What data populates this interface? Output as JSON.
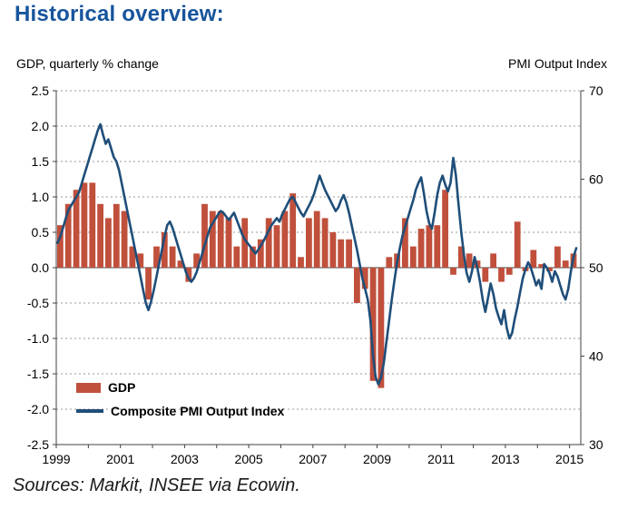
{
  "colors": {
    "title": "#17549c",
    "bar": "#c0503c",
    "line": "#1f4e79",
    "grid": "#9a9a9a",
    "axis": "#404040",
    "text": "#000000"
  },
  "chart_data": {
    "type": "combo_bar_line",
    "title": "Historical overview:",
    "source": "Sources: Markit, INSEE via Ecowin.",
    "grid": "dotted-horizontal",
    "legend_position": "inside-bottom-left",
    "left_axis": {
      "label": "GDP, quarterly % change",
      "min": -2.5,
      "max": 2.5,
      "step": 0.5,
      "ticks": [
        "2.5",
        "2.0",
        "1.5",
        "1.0",
        "0.5",
        "0.0",
        "-0.5",
        "-1.0",
        "-1.5",
        "-2.0",
        "-2.5"
      ]
    },
    "right_axis": {
      "label": "PMI Output Index",
      "min": 30,
      "max": 70,
      "step": 10,
      "ticks": [
        "70",
        "60",
        "50",
        "40",
        "30"
      ]
    },
    "x_axis": {
      "domain": [
        1999,
        2015.35
      ],
      "first_year": 1999,
      "last_year": 2015,
      "labels": [
        "1999",
        "2001",
        "2003",
        "2005",
        "2007",
        "2009",
        "2011",
        "2013",
        "2015"
      ]
    },
    "series": [
      {
        "name": "GDP",
        "type": "bar",
        "axis": "left",
        "color": "#c0503c",
        "start": 1999,
        "interval_years": 0.25,
        "values": [
          0.6,
          0.9,
          1.1,
          1.2,
          1.2,
          0.9,
          0.7,
          0.9,
          0.8,
          0.3,
          0.2,
          -0.45,
          0.3,
          0.5,
          0.3,
          0.1,
          -0.2,
          0.2,
          0.9,
          0.8,
          0.8,
          0.7,
          0.3,
          0.7,
          0.3,
          0.4,
          0.7,
          0.6,
          0.8,
          1.05,
          0.15,
          0.7,
          0.8,
          0.7,
          0.5,
          0.4,
          0.4,
          -0.5,
          -0.3,
          -1.6,
          -1.7,
          0.15,
          0.2,
          0.7,
          0.3,
          0.55,
          0.6,
          0.6,
          1.1,
          -0.1,
          0.3,
          0.2,
          0.1,
          -0.2,
          0.2,
          -0.2,
          -0.1,
          0.65,
          -0.05,
          0.25,
          0.05,
          -0.05,
          0.3,
          0.1,
          0.2
        ]
      },
      {
        "name": "Composite PMI Output Index",
        "type": "line",
        "axis": "right",
        "color": "#1f4e79",
        "start": 1999,
        "interval_years": 0.0833333,
        "values": [
          52.8,
          53.5,
          54.5,
          55.5,
          56.5,
          57.0,
          57.5,
          58.0,
          58.5,
          59.5,
          60.5,
          61.5,
          62.5,
          63.5,
          64.5,
          65.5,
          66.2,
          65.0,
          64.0,
          64.5,
          63.5,
          62.5,
          62.0,
          61.0,
          59.5,
          58.0,
          56.5,
          55.0,
          53.5,
          52.0,
          50.5,
          49.0,
          47.5,
          46.0,
          45.2,
          46.2,
          47.5,
          49.0,
          50.5,
          52.0,
          53.5,
          54.8,
          55.2,
          54.5,
          53.5,
          52.5,
          51.5,
          50.5,
          49.5,
          48.8,
          48.4,
          48.8,
          49.5,
          50.5,
          51.5,
          52.5,
          53.5,
          54.5,
          55.0,
          55.5,
          56.0,
          56.4,
          56.2,
          55.8,
          55.4,
          55.8,
          56.2,
          55.4,
          54.6,
          53.8,
          53.2,
          52.8,
          52.4,
          52.0,
          51.6,
          52.0,
          52.5,
          53.0,
          53.6,
          54.2,
          54.8,
          55.2,
          55.6,
          55.2,
          56.0,
          56.6,
          57.2,
          57.8,
          58.0,
          57.4,
          56.8,
          56.2,
          55.8,
          56.4,
          57.0,
          57.6,
          58.4,
          59.4,
          60.4,
          59.6,
          58.8,
          58.2,
          57.6,
          57.0,
          56.4,
          56.8,
          57.6,
          58.2,
          57.4,
          56.2,
          54.8,
          53.4,
          52.0,
          50.4,
          48.8,
          47.6,
          46.4,
          44.0,
          40.0,
          37.6,
          36.8,
          37.6,
          39.2,
          41.6,
          44.0,
          46.4,
          48.6,
          50.6,
          52.2,
          53.6,
          54.6,
          55.6,
          56.6,
          57.6,
          58.8,
          59.6,
          60.2,
          58.4,
          56.4,
          55.0,
          54.4,
          56.2,
          58.2,
          59.6,
          60.4,
          59.4,
          58.6,
          59.6,
          62.4,
          60.4,
          57.0,
          54.0,
          51.4,
          49.4,
          48.4,
          49.6,
          51.2,
          50.0,
          48.4,
          46.4,
          45.0,
          46.6,
          48.2,
          47.0,
          45.4,
          44.4,
          43.6,
          45.2,
          43.2,
          42.0,
          42.6,
          44.2,
          45.6,
          47.2,
          48.8,
          49.8,
          50.6,
          50.0,
          49.0,
          48.0,
          48.6,
          47.6,
          50.4,
          50.0,
          49.4,
          48.4,
          49.6,
          49.0,
          48.0,
          47.0,
          46.4,
          47.6,
          49.6,
          51.2,
          52.2
        ]
      }
    ]
  }
}
